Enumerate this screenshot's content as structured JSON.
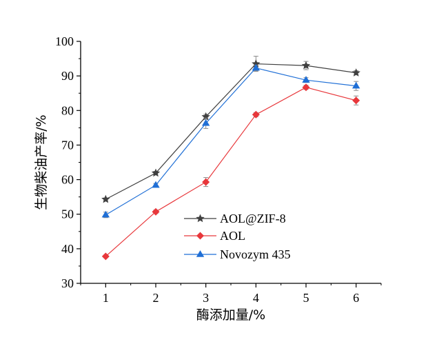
{
  "chart_data": {
    "type": "line",
    "title": "",
    "xlabel": "酶添加量/%",
    "ylabel": "生物柴油产率/%",
    "x": [
      1,
      2,
      3,
      4,
      5,
      6
    ],
    "xlim": [
      0.5,
      6.5
    ],
    "ylim": [
      30,
      100
    ],
    "xticks": [
      "1",
      "2",
      "3",
      "4",
      "5",
      "6"
    ],
    "yticks": [
      "30",
      "40",
      "50",
      "60",
      "70",
      "80",
      "90",
      "100"
    ],
    "grid": false,
    "legend_position": "lower-right",
    "series": [
      {
        "name": "AOL@ZIF-8",
        "color": "#3f3f3f",
        "marker": "star",
        "values": [
          54.3,
          61.9,
          78.2,
          93.5,
          93.0,
          90.9
        ],
        "errors": [
          0.4,
          0.5,
          0.7,
          2.2,
          1.2,
          0.6
        ]
      },
      {
        "name": "AOL",
        "color": "#e8373b",
        "marker": "diamond",
        "values": [
          37.8,
          50.7,
          59.3,
          78.8,
          86.7,
          82.9
        ],
        "errors": [
          0.4,
          0.5,
          1.3,
          0.6,
          0.6,
          1.3
        ]
      },
      {
        "name": "Novozym 435",
        "color": "#1f6fd6",
        "marker": "triangle",
        "values": [
          49.8,
          58.4,
          76.3,
          92.3,
          88.8,
          87.1
        ],
        "errors": [
          0.8,
          0.5,
          1.5,
          0.8,
          0.7,
          1.3
        ]
      }
    ]
  }
}
